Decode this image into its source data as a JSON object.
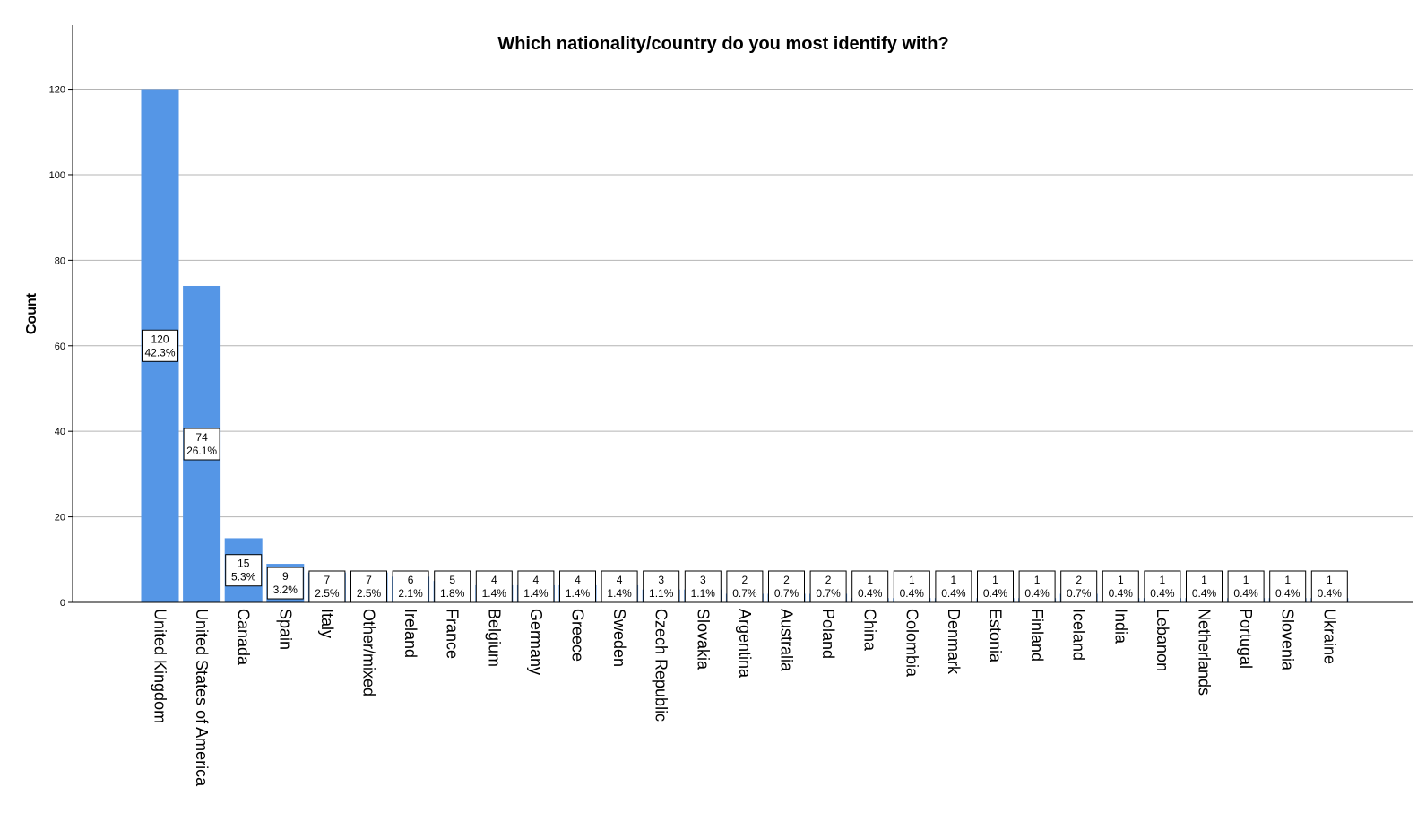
{
  "chart_data": {
    "type": "bar",
    "title": "Which nationality/country do you most identify with?",
    "xlabel": "",
    "ylabel": "Count",
    "ylim": [
      0,
      135
    ],
    "yticks": [
      0,
      20,
      40,
      60,
      80,
      100,
      120
    ],
    "grid": true,
    "bar_color": "#5596e6",
    "categories": [
      "United Kingdom",
      "United States of America",
      "Canada",
      "Spain",
      "Italy",
      "Other/mixed",
      "Ireland",
      "France",
      "Belgium",
      "Germany",
      "Greece",
      "Sweden",
      "Czech Republic",
      "Slovakia",
      "Argentina",
      "Australia",
      "Poland",
      "China",
      "Colombia",
      "Denmark",
      "Estonia",
      "Finland",
      "Iceland",
      "India",
      "Lebanon",
      "Netherlands",
      "Portugal",
      "Slovenia",
      "Ukraine"
    ],
    "values": [
      120,
      74,
      15,
      9,
      7,
      7,
      6,
      5,
      4,
      4,
      4,
      4,
      3,
      3,
      2,
      2,
      2,
      1,
      1,
      1,
      1,
      1,
      2,
      1,
      1,
      1,
      1,
      1,
      1
    ],
    "percent_labels": [
      "42.3%",
      "26.1%",
      "5.3%",
      "3.2%",
      "2.5%",
      "2.5%",
      "2.1%",
      "1.8%",
      "1.4%",
      "1.4%",
      "1.4%",
      "1.4%",
      "1.1%",
      "1.1%",
      "0.7%",
      "0.7%",
      "0.7%",
      "0.4%",
      "0.4%",
      "0.4%",
      "0.4%",
      "0.4%",
      "0.7%",
      "0.4%",
      "0.4%",
      "0.4%",
      "0.4%",
      "0.4%",
      "0.4%"
    ]
  }
}
